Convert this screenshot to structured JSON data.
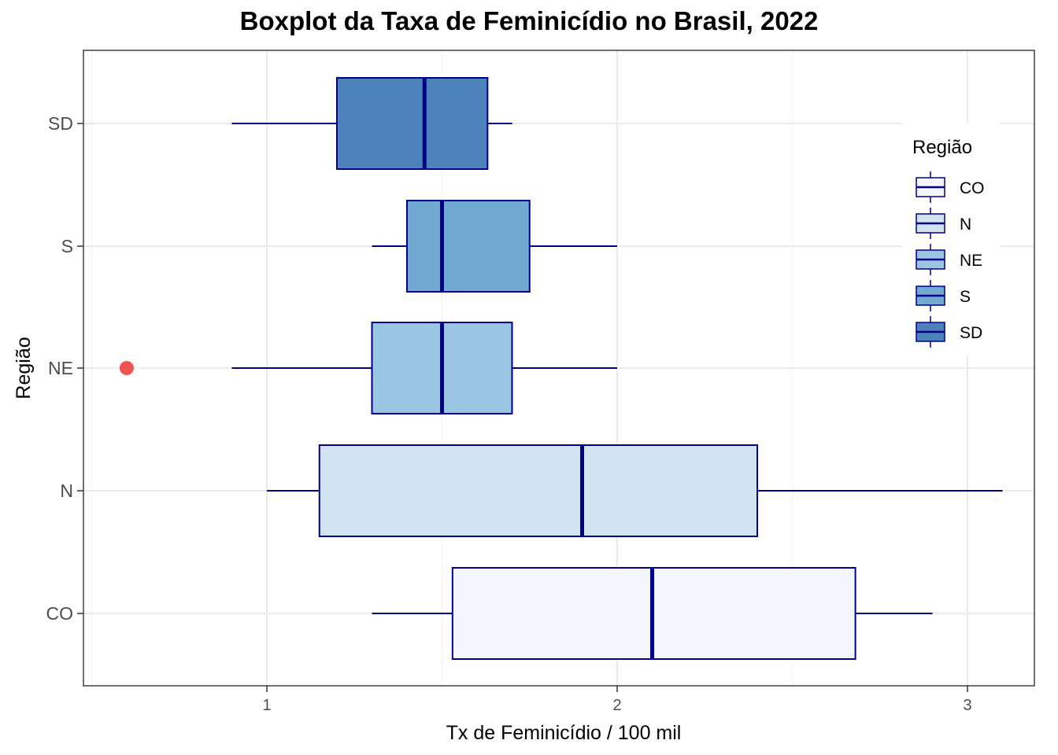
{
  "chart_data": {
    "type": "boxplot",
    "orientation": "horizontal",
    "title": "Boxplot da Taxa de Feminicídio no Brasil, 2022",
    "xlabel": "Tx de Feminicídio / 100 mil",
    "ylabel": "Região",
    "xlim": [
      0.5,
      3.2
    ],
    "x_ticks": [
      "1",
      "2",
      "3"
    ],
    "grid": true,
    "legend": {
      "title": "Região",
      "position": "right-top inside"
    },
    "outline_color": "#00008B",
    "outlier_color": "#F04040",
    "series": [
      {
        "name": "CO",
        "fill": "#F3F6FC",
        "whisker_low": 1.3,
        "q1": 1.53,
        "median": 2.1,
        "q3": 2.68,
        "whisker_high": 2.9,
        "outliers": []
      },
      {
        "name": "N",
        "fill": "#D2E3F0",
        "whisker_low": 1.0,
        "q1": 1.15,
        "median": 1.9,
        "q3": 2.4,
        "whisker_high": 3.1,
        "outliers": []
      },
      {
        "name": "NE",
        "fill": "#9AC5E3",
        "whisker_low": 0.9,
        "q1": 1.3,
        "median": 1.5,
        "q3": 1.7,
        "whisker_high": 2.0,
        "outliers": [
          0.6
        ]
      },
      {
        "name": "S",
        "fill": "#72A9D2",
        "whisker_low": 1.3,
        "q1": 1.4,
        "median": 1.5,
        "q3": 1.75,
        "whisker_high": 2.0,
        "outliers": []
      },
      {
        "name": "SD",
        "fill": "#4C82BA",
        "whisker_low": 0.9,
        "q1": 1.2,
        "median": 1.45,
        "q3": 1.63,
        "whisker_high": 1.7,
        "outliers": []
      }
    ]
  }
}
